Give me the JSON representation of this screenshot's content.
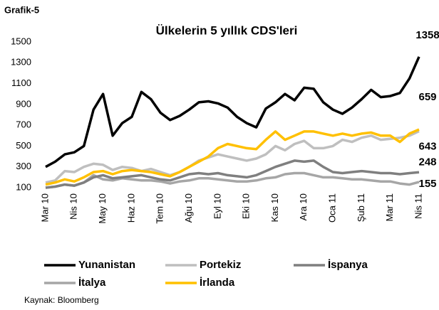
{
  "chart_data": {
    "type": "line",
    "label": "Grafik-5",
    "title": "Ülkelerin 5 yıllık CDS'leri",
    "source": "Kaynak: Bloomberg",
    "categories": [
      "Mar 10",
      null,
      null,
      "Nis 10",
      null,
      null,
      "May 10",
      null,
      null,
      "Haz 10",
      null,
      null,
      "Tem 10",
      null,
      null,
      "Ağu 10",
      null,
      null,
      "Eyl 10",
      null,
      null,
      "Eki 10",
      null,
      null,
      "Kas 10",
      null,
      null,
      "Ara 10",
      null,
      null,
      "Oca 11",
      null,
      null,
      "Şub 11",
      null,
      null,
      "Mar 11",
      null,
      null,
      "Nis 11"
    ],
    "series": [
      {
        "name": "Yunanistan",
        "color": "#000000",
        "values": [
          300,
          350,
          420,
          440,
          500,
          850,
          1000,
          600,
          720,
          780,
          1020,
          950,
          820,
          750,
          790,
          850,
          920,
          930,
          910,
          870,
          780,
          720,
          680,
          860,
          920,
          1000,
          940,
          1060,
          1050,
          920,
          850,
          810,
          870,
          950,
          1040,
          970,
          980,
          1010,
          1150,
          1358
        ]
      },
      {
        "name": "Portekiz",
        "color": "#bfbfbf",
        "values": [
          150,
          170,
          260,
          250,
          300,
          330,
          320,
          270,
          300,
          290,
          260,
          280,
          250,
          220,
          250,
          300,
          360,
          390,
          420,
          400,
          380,
          360,
          380,
          420,
          500,
          460,
          520,
          550,
          480,
          480,
          500,
          560,
          540,
          580,
          600,
          560,
          570,
          580,
          600,
          643
        ]
      },
      {
        "name": "İspanya",
        "color": "#7f7f7f",
        "values": [
          100,
          110,
          130,
          120,
          150,
          200,
          220,
          190,
          200,
          210,
          220,
          200,
          180,
          170,
          200,
          230,
          240,
          230,
          240,
          220,
          210,
          200,
          220,
          260,
          300,
          330,
          360,
          350,
          360,
          300,
          250,
          240,
          250,
          260,
          250,
          240,
          240,
          230,
          240,
          248
        ]
      },
      {
        "name": "İtalya",
        "color": "#a6a6a6",
        "values": [
          100,
          110,
          130,
          120,
          150,
          220,
          180,
          170,
          190,
          180,
          170,
          170,
          160,
          140,
          160,
          170,
          190,
          190,
          180,
          170,
          160,
          160,
          170,
          190,
          200,
          230,
          240,
          240,
          220,
          200,
          200,
          190,
          180,
          180,
          170,
          160,
          160,
          140,
          130,
          155
        ]
      },
      {
        "name": "İrlanda",
        "color": "#ffc000",
        "values": [
          130,
          150,
          180,
          160,
          200,
          250,
          260,
          230,
          260,
          270,
          260,
          250,
          230,
          210,
          250,
          300,
          350,
          400,
          480,
          520,
          500,
          480,
          470,
          560,
          640,
          560,
          600,
          640,
          640,
          620,
          600,
          620,
          600,
          620,
          630,
          600,
          600,
          540,
          620,
          659
        ]
      }
    ],
    "ylim": [
      100,
      1500
    ],
    "yticks": [
      100,
      300,
      500,
      700,
      900,
      1100,
      1300,
      1500
    ]
  }
}
